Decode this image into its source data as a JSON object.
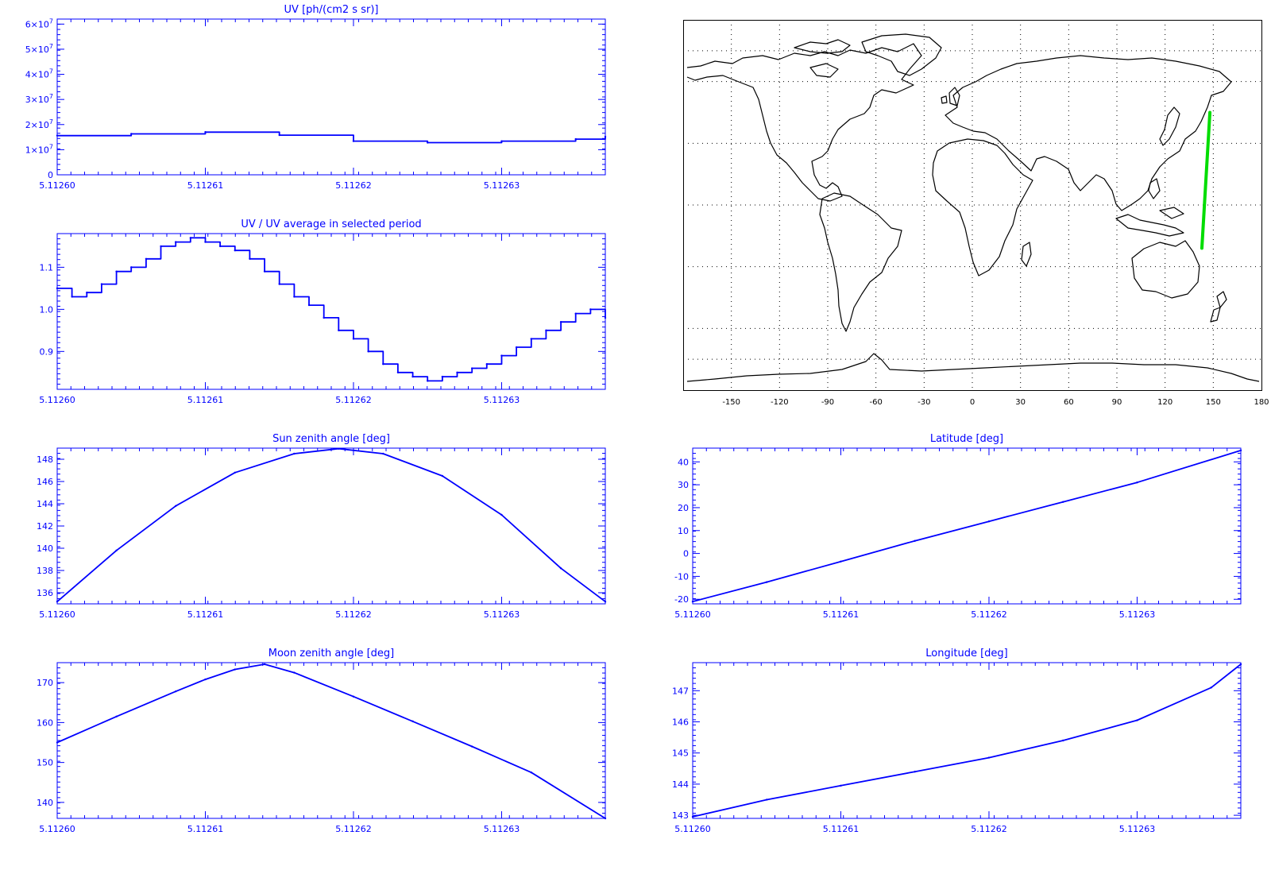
{
  "colors": {
    "line": "#0000ff",
    "track": "#00dd00",
    "coast": "#000000",
    "background": "#ffffff"
  },
  "chart_data": [
    {
      "id": "uv",
      "type": "line",
      "title": "UV [ph/(cm2 s sr)]",
      "xlim": [
        5.1126,
        5.112637
      ],
      "ylim": [
        0,
        62000000
      ],
      "xticks": [
        5.1126,
        5.11261,
        5.11262,
        5.11263
      ],
      "xtick_labels": [
        "5.11260",
        "5.11261",
        "5.11262",
        "5.11263"
      ],
      "yticks": [
        0,
        10000000,
        20000000,
        30000000,
        40000000,
        50000000,
        60000000
      ],
      "ytick_labels": [
        {
          "m": "0",
          "e": ""
        },
        {
          "m": "1×10",
          "e": "7"
        },
        {
          "m": "2×10",
          "e": "7"
        },
        {
          "m": "3×10",
          "e": "7"
        },
        {
          "m": "4×10",
          "e": "7"
        },
        {
          "m": "5×10",
          "e": "7"
        },
        {
          "m": "6×10",
          "e": "7"
        }
      ],
      "x": [
        5.1126,
        5.112605,
        5.11261,
        5.112615,
        5.11262,
        5.112625,
        5.11263,
        5.112635,
        5.112637
      ],
      "y": [
        15600000,
        16300000,
        17000000,
        15800000,
        13400000,
        12800000,
        13400000,
        14200000,
        15200000
      ]
    },
    {
      "id": "uv_ratio",
      "type": "line",
      "title": "UV / UV average in selected period",
      "xlim": [
        5.1126,
        5.112637
      ],
      "ylim": [
        0.81,
        1.18
      ],
      "xticks": [
        5.1126,
        5.11261,
        5.11262,
        5.11263
      ],
      "xtick_labels": [
        "5.11260",
        "5.11261",
        "5.11262",
        "5.11263"
      ],
      "yticks": [
        0.9,
        1.0,
        1.1
      ],
      "ytick_labels": [
        "0.9",
        "1.0",
        "1.1"
      ],
      "x": [
        5.1126,
        5.112601,
        5.112602,
        5.112603,
        5.112604,
        5.112605,
        5.112606,
        5.112607,
        5.112608,
        5.112609,
        5.11261,
        5.112611,
        5.112612,
        5.112613,
        5.112614,
        5.112615,
        5.112616,
        5.112617,
        5.112618,
        5.112619,
        5.11262,
        5.112621,
        5.112622,
        5.112623,
        5.112624,
        5.112625,
        5.112626,
        5.112627,
        5.112628,
        5.112629,
        5.11263,
        5.112631,
        5.112632,
        5.112633,
        5.112634,
        5.112635,
        5.112636,
        5.112637
      ],
      "y": [
        1.05,
        1.03,
        1.04,
        1.06,
        1.09,
        1.1,
        1.12,
        1.15,
        1.16,
        1.17,
        1.16,
        1.15,
        1.14,
        1.12,
        1.09,
        1.06,
        1.03,
        1.01,
        0.98,
        0.95,
        0.93,
        0.9,
        0.87,
        0.85,
        0.84,
        0.83,
        0.84,
        0.85,
        0.86,
        0.87,
        0.89,
        0.91,
        0.93,
        0.95,
        0.97,
        0.99,
        1.0,
        0.98
      ]
    },
    {
      "id": "sun",
      "type": "line",
      "title": "Sun zenith angle [deg]",
      "xlim": [
        5.1126,
        5.112637
      ],
      "ylim": [
        135.0,
        149.0
      ],
      "xticks": [
        5.1126,
        5.11261,
        5.11262,
        5.11263
      ],
      "xtick_labels": [
        "5.11260",
        "5.11261",
        "5.11262",
        "5.11263"
      ],
      "yticks": [
        136,
        138,
        140,
        142,
        144,
        146,
        148
      ],
      "ytick_labels": [
        "136",
        "138",
        "140",
        "142",
        "144",
        "146",
        "148"
      ],
      "x": [
        5.1126,
        5.112604,
        5.112608,
        5.112612,
        5.112616,
        5.112619,
        5.112622,
        5.112626,
        5.11263,
        5.112634,
        5.112637
      ],
      "y": [
        135.2,
        139.8,
        143.8,
        146.8,
        148.5,
        148.95,
        148.5,
        146.5,
        143.0,
        138.2,
        135.2
      ]
    },
    {
      "id": "latitude",
      "type": "line",
      "title": "Latitude [deg]",
      "xlim": [
        5.1126,
        5.112637
      ],
      "ylim": [
        -22,
        46
      ],
      "xticks": [
        5.1126,
        5.11261,
        5.11262,
        5.11263
      ],
      "xtick_labels": [
        "5.11260",
        "5.11261",
        "5.11262",
        "5.11263"
      ],
      "yticks": [
        -20,
        -10,
        0,
        10,
        20,
        30,
        40
      ],
      "ytick_labels": [
        "-20",
        "-10",
        "0",
        "10",
        "20",
        "30",
        "40"
      ],
      "x": [
        5.1126,
        5.112605,
        5.11261,
        5.112615,
        5.11262,
        5.112625,
        5.11263,
        5.112637
      ],
      "y": [
        -21.0,
        -12.5,
        -3.5,
        5.5,
        14.0,
        22.5,
        31.0,
        45.0
      ]
    },
    {
      "id": "moon",
      "type": "line",
      "title": "Moon zenith angle [deg]",
      "xlim": [
        5.1126,
        5.112637
      ],
      "ylim": [
        136,
        175
      ],
      "xticks": [
        5.1126,
        5.11261,
        5.11262,
        5.11263
      ],
      "xtick_labels": [
        "5.11260",
        "5.11261",
        "5.11262",
        "5.11263"
      ],
      "yticks": [
        140,
        150,
        160,
        170
      ],
      "ytick_labels": [
        "140",
        "150",
        "160",
        "170"
      ],
      "x": [
        5.1126,
        5.112604,
        5.112608,
        5.11261,
        5.112612,
        5.112614,
        5.112616,
        5.11262,
        5.112624,
        5.112628,
        5.112632,
        5.112637
      ],
      "y": [
        155.0,
        161.5,
        167.8,
        170.8,
        173.3,
        174.6,
        172.5,
        166.5,
        160.3,
        154.0,
        147.5,
        136.0
      ]
    },
    {
      "id": "longitude",
      "type": "line",
      "title": "Longitude [deg]",
      "xlim": [
        5.1126,
        5.112637
      ],
      "ylim": [
        142.9,
        147.9
      ],
      "xticks": [
        5.1126,
        5.11261,
        5.11262,
        5.11263
      ],
      "xtick_labels": [
        "5.11260",
        "5.11261",
        "5.11262",
        "5.11263"
      ],
      "yticks": [
        143,
        144,
        145,
        146,
        147
      ],
      "ytick_labels": [
        "143",
        "144",
        "145",
        "146",
        "147"
      ],
      "x": [
        5.1126,
        5.112605,
        5.11261,
        5.112615,
        5.11262,
        5.112625,
        5.11263,
        5.112635,
        5.112637
      ],
      "y": [
        142.95,
        143.5,
        143.95,
        144.4,
        144.85,
        145.4,
        146.05,
        147.1,
        147.85
      ]
    },
    {
      "id": "map",
      "type": "map",
      "xlim": [
        -180,
        180
      ],
      "ylim": [
        -90,
        90
      ],
      "grid": true,
      "xticks": [
        -150,
        -120,
        -90,
        -60,
        -30,
        0,
        30,
        60,
        90,
        120,
        150,
        180
      ],
      "xtick_labels": [
        "-150",
        "-120",
        "-90",
        "-60",
        "-30",
        "0",
        "30",
        "60",
        "90",
        "120",
        "150",
        "180"
      ],
      "track": {
        "lon": [
          142.9,
          147.9
        ],
        "lat": [
          -21.0,
          45.0
        ]
      }
    }
  ]
}
